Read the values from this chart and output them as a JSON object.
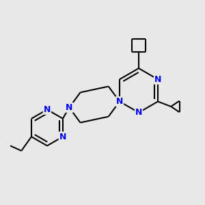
{
  "background_color": "#e8e8e8",
  "bond_color": "#000000",
  "nitrogen_color": "#0000ee",
  "line_width": 1.5,
  "figsize": [
    3.0,
    3.0
  ],
  "dpi": 100,
  "xlim": [
    0,
    10
  ],
  "ylim": [
    0,
    10
  ]
}
